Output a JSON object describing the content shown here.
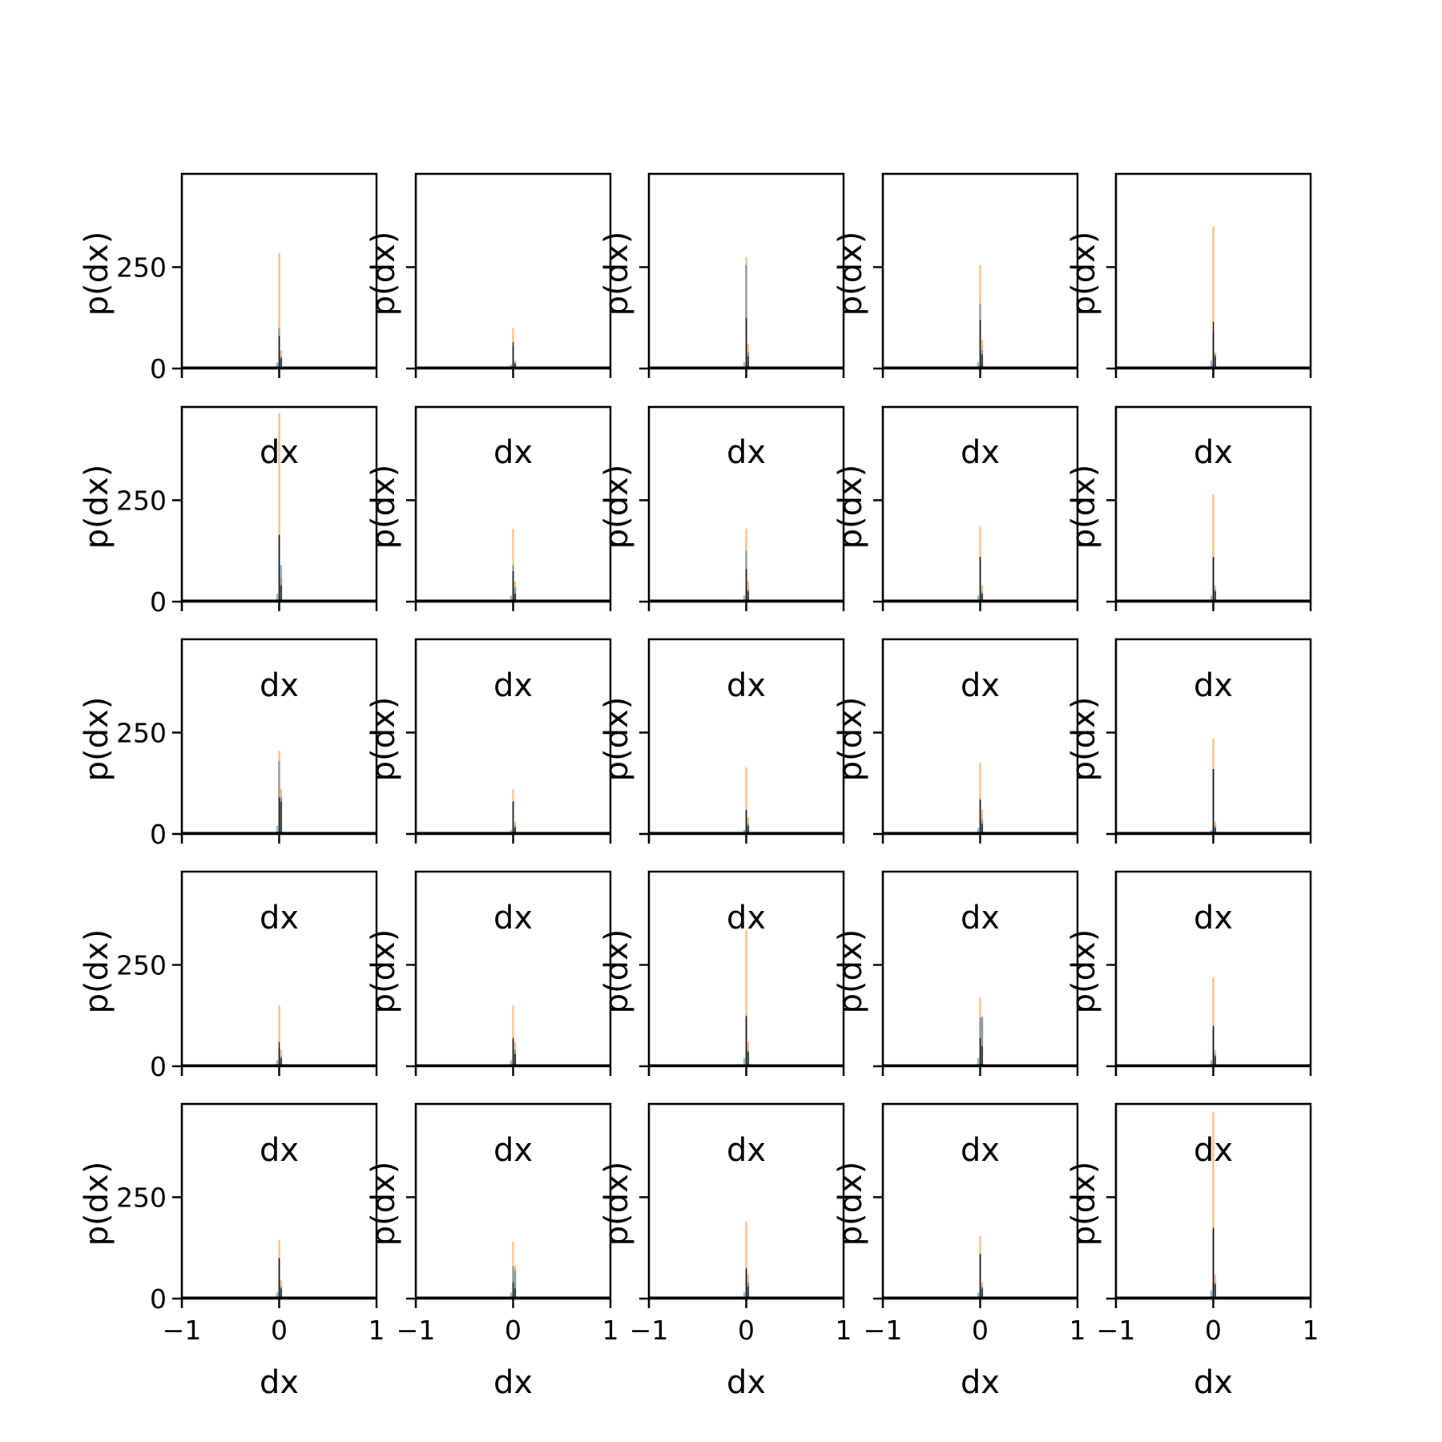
{
  "figure": {
    "rows": 5,
    "cols": 5,
    "colors": {
      "primary": "#1f77b4",
      "secondary": "#ff7f0e",
      "line": "#000000"
    }
  },
  "chart_data": {
    "type": "bar",
    "xlabel": "dx",
    "ylabel": "p(dx)",
    "xlim": [
      -1,
      1
    ],
    "ylim": [
      0,
      480
    ],
    "x_ticks": [
      -1,
      0,
      1
    ],
    "x_tick_labels": [
      "−1",
      "0",
      "1"
    ],
    "y_ticks": [
      0,
      250
    ],
    "y_tick_labels": [
      "0",
      "250"
    ],
    "bin_width": 0.02,
    "panels": [
      {
        "orange": [
          0,
          285,
          45
        ],
        "blue": [
          15,
          100,
          30
        ],
        "black": [
          5,
          80,
          25
        ]
      },
      {
        "orange": [
          0,
          100,
          20
        ],
        "blue": [
          10,
          55,
          15
        ],
        "black": [
          5,
          65,
          12
        ]
      },
      {
        "orange": [
          0,
          275,
          60
        ],
        "blue": [
          15,
          255,
          40
        ],
        "black": [
          5,
          125,
          30
        ]
      },
      {
        "orange": [
          0,
          255,
          70
        ],
        "blue": [
          15,
          160,
          45
        ],
        "black": [
          5,
          120,
          35
        ]
      },
      {
        "orange": [
          0,
          350,
          40
        ],
        "blue": [
          20,
          90,
          35
        ],
        "black": [
          5,
          115,
          30
        ]
      },
      {
        "orange": [
          0,
          465,
          60
        ],
        "blue": [
          20,
          160,
          90
        ],
        "black": [
          5,
          165,
          40
        ]
      },
      {
        "orange": [
          0,
          180,
          50
        ],
        "blue": [
          15,
          90,
          35
        ],
        "black": [
          5,
          75,
          20
        ]
      },
      {
        "orange": [
          0,
          180,
          50
        ],
        "blue": [
          15,
          125,
          30
        ],
        "black": [
          5,
          80,
          25
        ]
      },
      {
        "orange": [
          0,
          185,
          40
        ],
        "blue": [
          15,
          110,
          25
        ],
        "black": [
          5,
          110,
          20
        ]
      },
      {
        "orange": [
          0,
          265,
          40
        ],
        "blue": [
          15,
          110,
          30
        ],
        "black": [
          5,
          110,
          25
        ]
      },
      {
        "orange": [
          0,
          205,
          110
        ],
        "blue": [
          20,
          180,
          90
        ],
        "black": [
          5,
          90,
          80
        ]
      },
      {
        "orange": [
          0,
          110,
          30
        ],
        "blue": [
          10,
          80,
          20
        ],
        "black": [
          5,
          80,
          15
        ]
      },
      {
        "orange": [
          0,
          165,
          40
        ],
        "blue": [
          10,
          55,
          25
        ],
        "black": [
          5,
          60,
          20
        ]
      },
      {
        "orange": [
          0,
          175,
          60
        ],
        "blue": [
          15,
          85,
          35
        ],
        "black": [
          5,
          85,
          25
        ]
      },
      {
        "orange": [
          0,
          235,
          30
        ],
        "blue": [
          10,
          160,
          20
        ],
        "black": [
          5,
          160,
          15
        ]
      },
      {
        "orange": [
          0,
          150,
          40
        ],
        "blue": [
          15,
          45,
          25
        ],
        "black": [
          5,
          60,
          20
        ]
      },
      {
        "orange": [
          0,
          150,
          60
        ],
        "blue": [
          15,
          65,
          40
        ],
        "black": [
          5,
          70,
          30
        ]
      },
      {
        "orange": [
          0,
          335,
          60
        ],
        "blue": [
          20,
          120,
          40
        ],
        "black": [
          5,
          125,
          35
        ]
      },
      {
        "orange": [
          0,
          170,
          125
        ],
        "blue": [
          20,
          120,
          120
        ],
        "black": [
          5,
          70,
          50
        ]
      },
      {
        "orange": [
          0,
          220,
          40
        ],
        "blue": [
          15,
          95,
          30
        ],
        "black": [
          5,
          100,
          25
        ]
      },
      {
        "orange": [
          0,
          145,
          45
        ],
        "blue": [
          15,
          100,
          30
        ],
        "black": [
          5,
          100,
          25
        ]
      },
      {
        "orange": [
          0,
          140,
          80
        ],
        "blue": [
          15,
          80,
          70
        ],
        "black": [
          5,
          40,
          25
        ]
      },
      {
        "orange": [
          0,
          190,
          60
        ],
        "blue": [
          15,
          70,
          40
        ],
        "black": [
          5,
          75,
          30
        ]
      },
      {
        "orange": [
          0,
          155,
          40
        ],
        "blue": [
          15,
          110,
          30
        ],
        "black": [
          5,
          110,
          25
        ]
      },
      {
        "orange": [
          0,
          460,
          60
        ],
        "blue": [
          20,
          170,
          40
        ],
        "black": [
          5,
          175,
          35
        ]
      }
    ]
  }
}
